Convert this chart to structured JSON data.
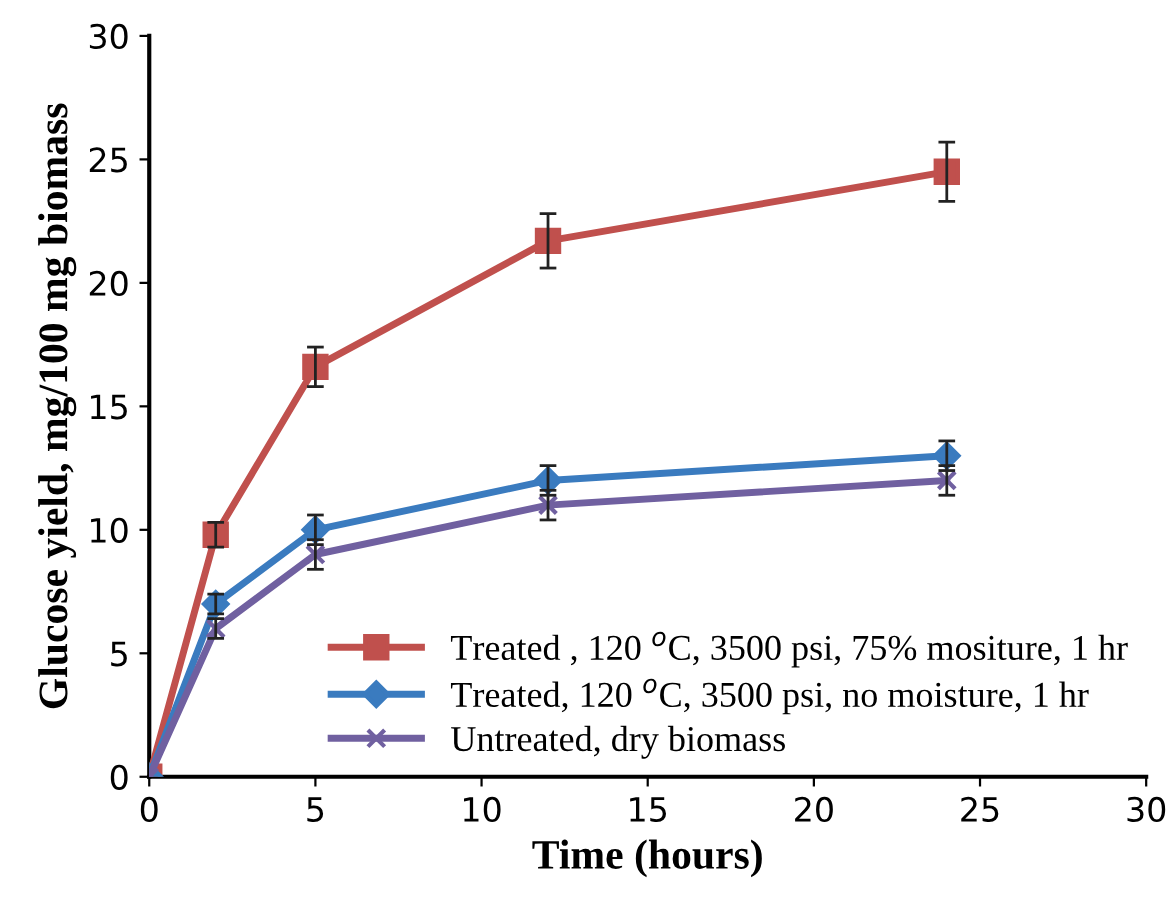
{
  "chart_data": {
    "type": "line",
    "xlabel": "Time (hours)",
    "ylabel": "Glucose yield, mg/100 mg biomass",
    "x": [
      0,
      2,
      5,
      12,
      24
    ],
    "series": [
      {
        "name": "Treated , 120 $^{o}$C, 3500 psi, 75% mositure, 1 hr",
        "color": "#c0504d",
        "marker": "square",
        "values": [
          0,
          9.8,
          16.6,
          21.7,
          24.5
        ],
        "errors": [
          null,
          0.5,
          0.8,
          1.1,
          1.2
        ]
      },
      {
        "name": "Treated, 120 $^{o}$C, 3500 psi, no moisture, 1 hr",
        "color": "#3a7bbf",
        "marker": "diamond",
        "values": [
          0,
          7,
          10,
          12,
          13
        ],
        "errors": [
          null,
          0.4,
          0.6,
          0.6,
          0.6
        ]
      },
      {
        "name": "Untreated, dry biomass",
        "color": "#7060a0",
        "marker": "cross",
        "values": [
          0,
          6,
          9,
          11,
          12
        ],
        "errors": [
          null,
          0.4,
          0.6,
          0.6,
          0.6
        ]
      }
    ],
    "xlim": [
      0,
      30
    ],
    "xticks": [
      0,
      5,
      10,
      15,
      20,
      25,
      30
    ],
    "ylim": [
      0,
      30
    ],
    "yticks": [
      0,
      5,
      10,
      15,
      20,
      25,
      30
    ],
    "grid": false,
    "legend": "bottom right"
  }
}
